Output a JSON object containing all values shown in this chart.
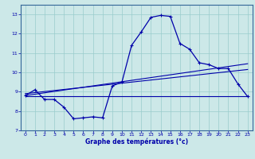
{
  "xlabel": "Graphe des températures (°c)",
  "bg_color": "#cce8e8",
  "grid_color": "#99cccc",
  "line_color": "#0000aa",
  "spine_color": "#336699",
  "xlim": [
    -0.5,
    23.5
  ],
  "ylim": [
    7,
    13.5
  ],
  "xticks": [
    0,
    1,
    2,
    3,
    4,
    5,
    6,
    7,
    8,
    9,
    10,
    11,
    12,
    13,
    14,
    15,
    16,
    17,
    18,
    19,
    20,
    21,
    22,
    23
  ],
  "yticks": [
    7,
    8,
    9,
    10,
    11,
    12,
    13
  ],
  "series1_x": [
    0,
    1,
    2,
    3,
    4,
    5,
    6,
    7,
    8,
    9,
    10,
    11,
    12,
    13,
    14,
    15,
    16,
    17,
    18,
    19,
    20,
    21,
    22,
    23
  ],
  "series1_y": [
    8.8,
    9.1,
    8.6,
    8.6,
    8.2,
    7.6,
    7.65,
    7.7,
    7.65,
    9.3,
    9.5,
    11.4,
    12.1,
    12.85,
    12.95,
    12.9,
    11.5,
    11.2,
    10.5,
    10.4,
    10.2,
    10.2,
    9.4,
    8.75
  ],
  "line2_x": [
    0,
    23
  ],
  "line2_y": [
    8.75,
    8.75
  ],
  "line3_x": [
    0,
    23
  ],
  "line3_y": [
    8.8,
    10.45
  ],
  "line4_x": [
    0,
    23
  ],
  "line4_y": [
    8.9,
    10.15
  ]
}
